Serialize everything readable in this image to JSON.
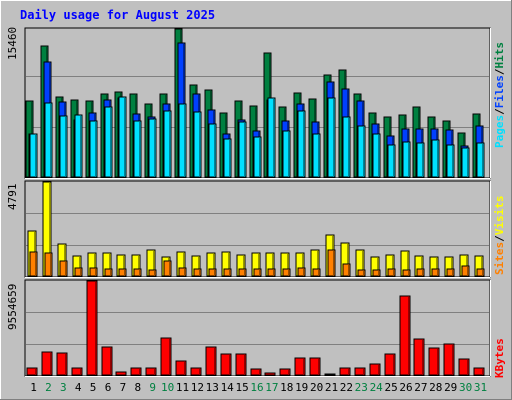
{
  "title": "Daily usage for August 2025",
  "colors": {
    "background": "#c0c0c0",
    "title_text": "#0000ff",
    "hits": "#008040",
    "files": "#0040ff",
    "pages": "#00e0ff",
    "visits": "#ffff00",
    "sites": "#ff8000",
    "kbytes": "#ff0000",
    "weekend_day_label": "#008040",
    "weekday_label": "#000000"
  },
  "panels": {
    "top": {
      "max_label": "15460",
      "legend": [
        {
          "key": "pages",
          "label": "Pages"
        },
        {
          "key": "sep",
          "label": "/"
        },
        {
          "key": "files",
          "label": "Files"
        },
        {
          "key": "sep",
          "label": "/"
        },
        {
          "key": "hits",
          "label": "Hits"
        }
      ]
    },
    "middle": {
      "max_label": "4791",
      "legend": [
        {
          "key": "sites",
          "label": "Sites"
        },
        {
          "key": "sep",
          "label": "/"
        },
        {
          "key": "visits",
          "label": "Visits"
        }
      ]
    },
    "bottom": {
      "max_label": "9554659",
      "legend": [
        {
          "key": "kbytes",
          "label": "KBytes"
        }
      ]
    }
  },
  "chart_data": {
    "type": "bar",
    "title": "Daily usage for August 2025",
    "categories": [
      "1",
      "2",
      "3",
      "4",
      "5",
      "6",
      "7",
      "8",
      "9",
      "10",
      "11",
      "12",
      "13",
      "14",
      "15",
      "16",
      "17",
      "18",
      "19",
      "20",
      "21",
      "22",
      "23",
      "24",
      "25",
      "26",
      "27",
      "28",
      "29",
      "30",
      "31"
    ],
    "weekend_days": [
      "2",
      "3",
      "9",
      "10",
      "16",
      "17",
      "23",
      "24",
      "30",
      "31"
    ],
    "panels": [
      {
        "name": "top",
        "ylim": [
          0,
          15460
        ],
        "series": [
          {
            "name": "Hits",
            "key": "hits",
            "values": [
              7900,
              13700,
              8400,
              8000,
              7900,
              8700,
              8900,
              8700,
              7600,
              8700,
              15460,
              9600,
              9100,
              6700,
              7900,
              7400,
              13000,
              7300,
              8800,
              8200,
              10700,
              11200,
              8700,
              6700,
              6300,
              6500,
              7300,
              6300,
              5800,
              4600,
              6600
            ]
          },
          {
            "name": "Files",
            "key": "files",
            "values": [
              4500,
              12000,
              7800,
              6000,
              6700,
              8000,
              8300,
              6600,
              6300,
              7600,
              14000,
              8700,
              7000,
              4500,
              6000,
              4800,
              8000,
              5800,
              7600,
              5700,
              9900,
              9200,
              7900,
              5500,
              4300,
              5000,
              5000,
              5000,
              4900,
              3200,
              5300
            ]
          },
          {
            "name": "Pages",
            "key": "pages",
            "values": [
              4500,
              7700,
              6400,
              6500,
              5900,
              7300,
              8400,
              5900,
              6100,
              6900,
              7600,
              6800,
              5500,
              4000,
              5700,
              4200,
              8300,
              4800,
              6900,
              4500,
              8300,
              6300,
              5300,
              4500,
              3300,
              3700,
              3500,
              3900,
              3300,
              3000,
              3600
            ]
          }
        ]
      },
      {
        "name": "middle",
        "ylim": [
          0,
          4791
        ],
        "series": [
          {
            "name": "Visits",
            "key": "visits",
            "values": [
              2300,
              4791,
              1650,
              1000,
              1150,
              1150,
              1050,
              1050,
              1300,
              950,
              1200,
              1000,
              1150,
              1200,
              1050,
              1150,
              1150,
              1150,
              1150,
              1350,
              2100,
              1700,
              1300,
              950,
              1050,
              1250,
              1000,
              950,
              950,
              1050,
              1000
            ]
          },
          {
            "name": "Sites",
            "key": "sites",
            "values": [
              1200,
              1150,
              750,
              400,
              400,
              350,
              350,
              350,
              300,
              750,
              400,
              350,
              350,
              350,
              350,
              350,
              350,
              350,
              400,
              350,
              1300,
              600,
              300,
              300,
              350,
              300,
              350,
              350,
              350,
              500,
              350
            ]
          }
        ]
      },
      {
        "name": "bottom",
        "ylim": [
          0,
          9554659
        ],
        "series": [
          {
            "name": "KBytes",
            "key": "kbytes",
            "values": [
              700000,
              2350000,
              2200000,
              680000,
              9554659,
              2800000,
              300000,
              700000,
              720000,
              3750000,
              1400000,
              700000,
              2800000,
              2150000,
              2150000,
              650000,
              250000,
              650000,
              1750000,
              1700000,
              100000,
              700000,
              700000,
              1150000,
              2150000,
              8000000,
              3700000,
              2750000,
              3200000,
              1600000,
              750000
            ]
          }
        ]
      }
    ]
  }
}
